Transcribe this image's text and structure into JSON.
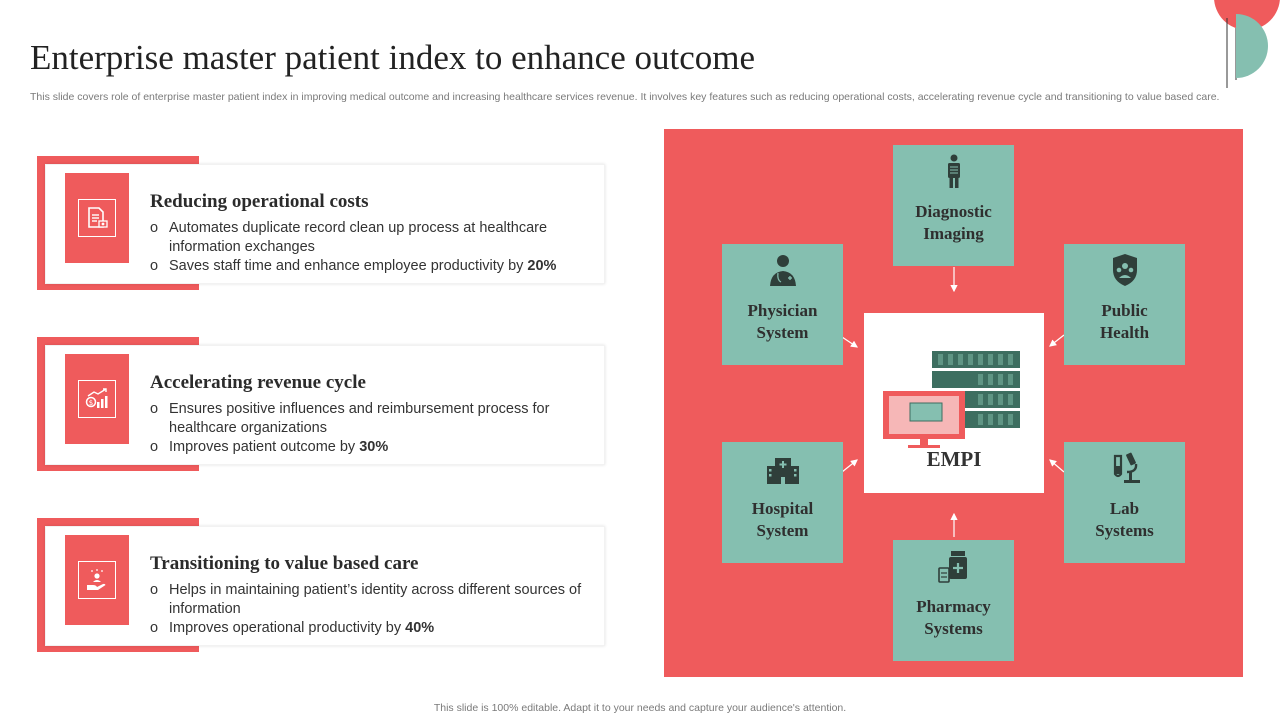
{
  "title": "Enterprise master patient index to enhance outcome",
  "subtitle": "This slide covers role of enterprise master patient index in improving medical outcome and increasing healthcare services revenue. It involves key features such as  reducing operational costs, accelerating revenue cycle and transitioning to value based care.",
  "features": [
    {
      "title": "Reducing operational  costs",
      "icon": "document-cost-icon",
      "bullets": [
        {
          "text": "Automates duplicate record clean up process at healthcare information exchanges",
          "bold": ""
        },
        {
          "text": "Saves staff time and enhance employee productivity by ",
          "bold": "20%"
        }
      ]
    },
    {
      "title": "Accelerating revenue cycle",
      "icon": "revenue-growth-icon",
      "bullets": [
        {
          "text": "Ensures positive influences and reimbursement process for healthcare organizations",
          "bold": ""
        },
        {
          "text": "Improves patient outcome by ",
          "bold": "30%"
        }
      ]
    },
    {
      "title": "Transitioning  to value based care",
      "icon": "hand-care-icon",
      "bullets": [
        {
          "text": "Helps in maintaining patient’s identity across different sources of information",
          "bold": ""
        },
        {
          "text": "Improves operational productivity by ",
          "bold": "40%"
        }
      ]
    }
  ],
  "diagram": {
    "center_label": "EMPI",
    "nodes": {
      "diagnostic": {
        "line1": "Diagnostic",
        "line2": "Imaging"
      },
      "physician": {
        "line1": "Physician",
        "line2": "System"
      },
      "public": {
        "line1": "Public",
        "line2": "Health"
      },
      "hospital": {
        "line1": "Hospital",
        "line2": "System"
      },
      "lab": {
        "line1": "Lab",
        "line2": "Systems"
      },
      "pharmacy": {
        "line1": "Pharmacy",
        "line2": "Systems"
      }
    }
  },
  "footer": "This slide is 100% editable. Adapt it to your needs and capture your audience's attention.",
  "colors": {
    "accent_red": "#ef5b5c",
    "accent_teal": "#85bfb0",
    "dark_teal": "#3d6e60"
  }
}
